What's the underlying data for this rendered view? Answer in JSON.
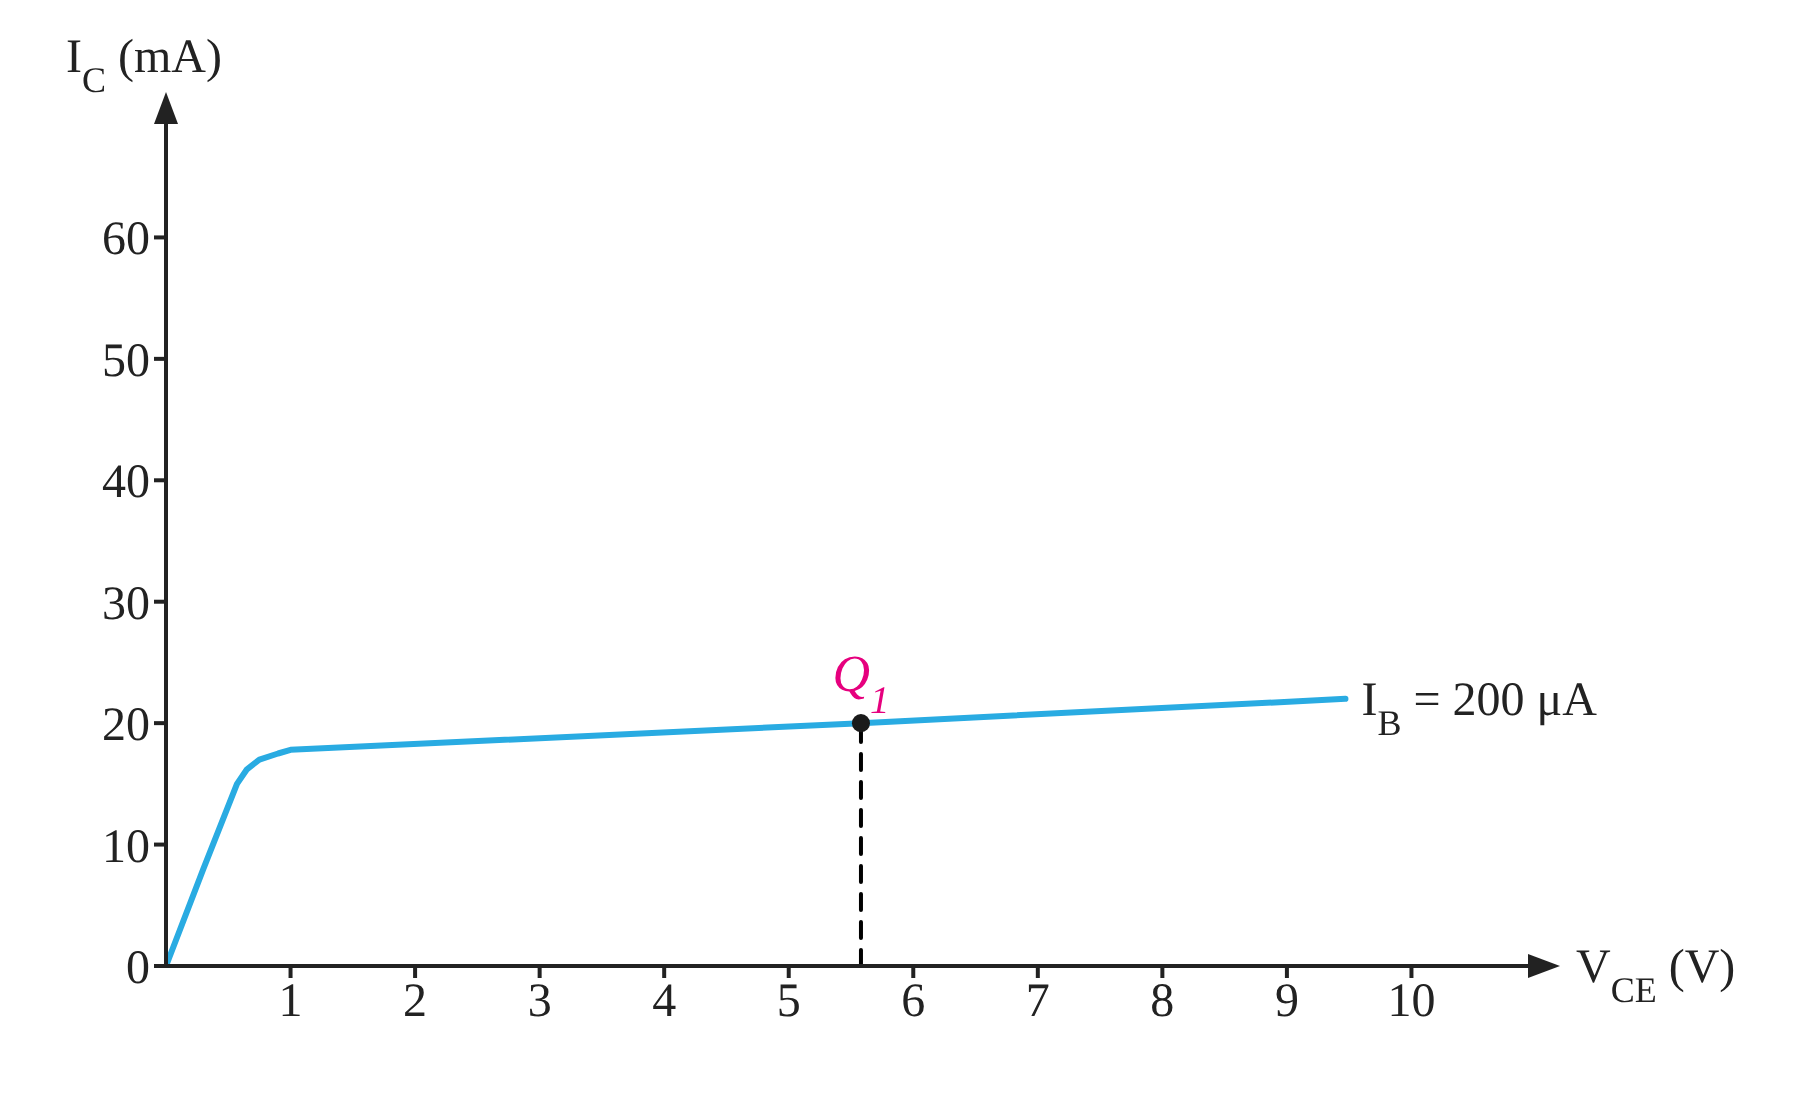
{
  "chart_data": {
    "type": "line",
    "xlabel": "V$_{CE}$ (V)",
    "ylabel": "I$_{C}$ (mA)",
    "xlim": [
      0,
      11
    ],
    "ylim": [
      0,
      70
    ],
    "xticks": [
      1,
      2,
      3,
      4,
      5,
      6,
      7,
      8,
      9,
      10
    ],
    "yticks": [
      0,
      10,
      20,
      30,
      40,
      50,
      60
    ],
    "grid": false,
    "legend": false,
    "series": [
      {
        "name": "I$_{B}$ = 200 μA",
        "color": "#29abe2",
        "marker": "none",
        "line_style": "solid",
        "x": [
          0,
          0.3,
          0.57,
          0.65,
          0.75,
          0.9,
          1.0,
          5.58,
          9.47
        ],
        "values": [
          0,
          8,
          15,
          16.2,
          17,
          17.5,
          17.8,
          20,
          22
        ]
      },
      {
        "color": "#000000",
        "type": "line",
        "marker": "none",
        "line_style": "dashed",
        "x": [
          5.58,
          5.58
        ],
        "values": [
          0,
          20
        ]
      },
      {
        "color": "#1a1a1a",
        "type": "scatter",
        "marker": "circle",
        "x": [
          5.58
        ],
        "values": [
          20
        ]
      }
    ],
    "annotations": [
      {
        "text": "Q$_{1}$",
        "x": 5.58,
        "y": 20
      }
    ]
  }
}
